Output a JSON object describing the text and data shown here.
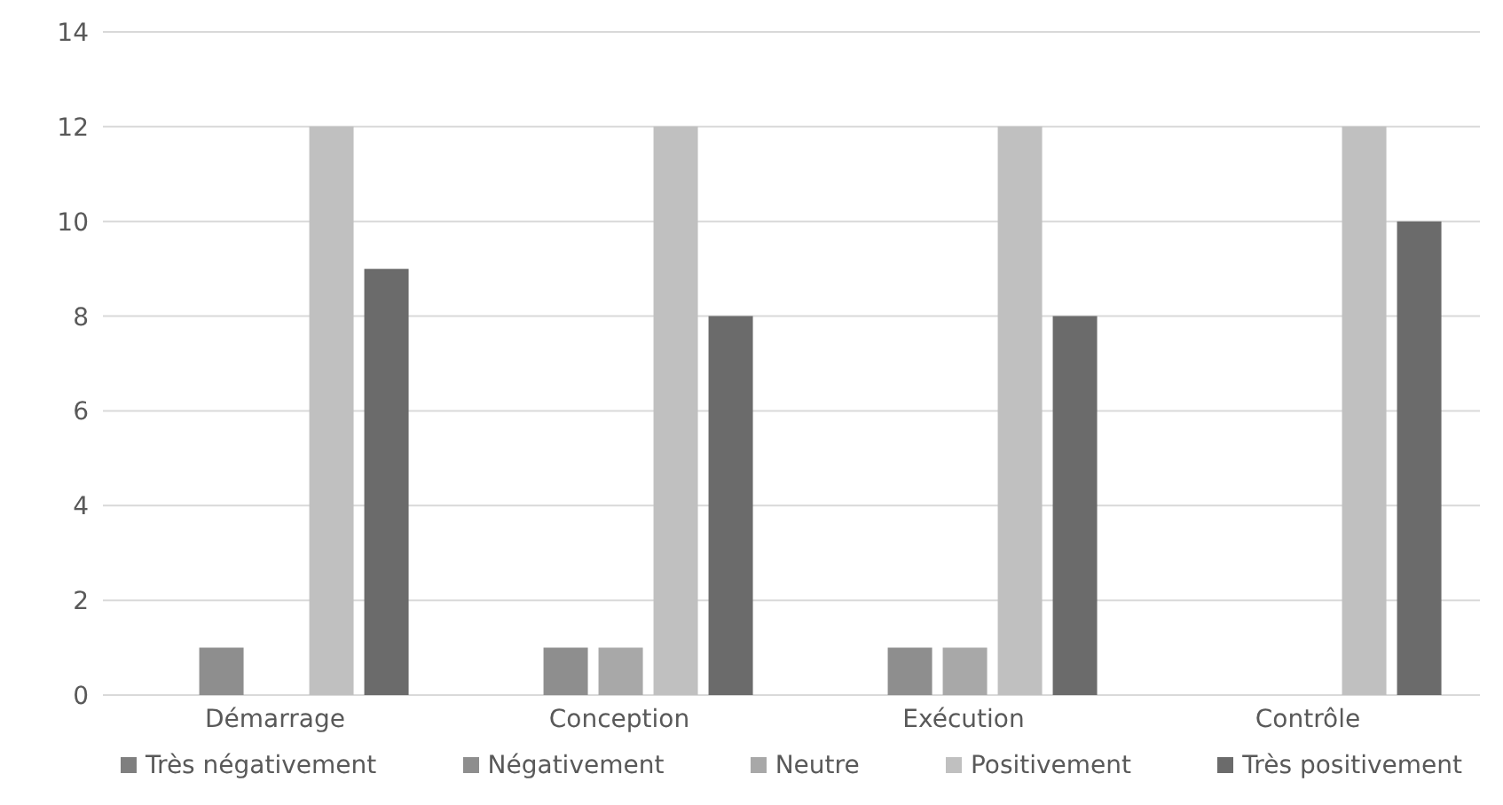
{
  "chart_data": {
    "type": "bar",
    "categories": [
      "Démarrage",
      "Conception",
      "Exécution",
      "Contrôle"
    ],
    "series": [
      {
        "name": "Très négativement",
        "color": "#7f7f7f",
        "values": [
          0,
          0,
          0,
          0
        ]
      },
      {
        "name": "Négativement",
        "color": "#8e8e8e",
        "values": [
          1,
          1,
          1,
          0
        ]
      },
      {
        "name": "Neutre",
        "color": "#a8a8a8",
        "values": [
          0,
          1,
          1,
          0
        ]
      },
      {
        "name": "Positivement",
        "color": "#c0c0c0",
        "values": [
          12,
          12,
          12,
          12
        ]
      },
      {
        "name": "Très positivement",
        "color": "#6b6b6b",
        "values": [
          9,
          8,
          8,
          10
        ]
      }
    ],
    "ylim": [
      0,
      14
    ],
    "yticks": [
      0,
      2,
      4,
      6,
      8,
      10,
      12,
      14
    ],
    "grid": "y",
    "legend": "bottom"
  }
}
